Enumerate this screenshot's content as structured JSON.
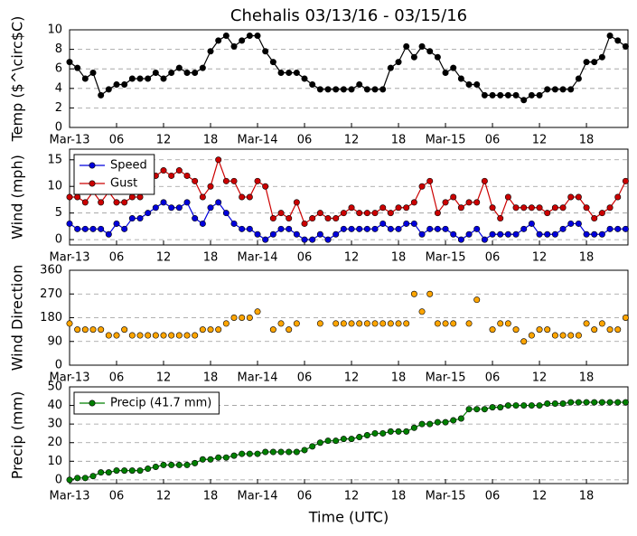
{
  "chart_data": [
    {
      "type": "line",
      "title": "Chehalis 03/13/16 - 03/15/16",
      "ylabel": "Temp ($^\\circ$C)",
      "x": [
        0,
        1,
        2,
        3,
        4,
        5,
        6,
        7,
        8,
        9,
        10,
        11,
        12,
        13,
        14,
        15,
        16,
        17,
        18,
        19,
        20,
        21,
        22,
        23,
        24,
        25,
        26,
        27,
        28,
        29,
        30,
        31,
        32,
        33,
        34,
        35,
        36,
        37,
        38,
        39,
        40,
        41,
        42,
        43,
        44,
        45,
        46,
        47,
        48,
        49,
        50,
        51,
        52,
        53,
        54,
        55,
        56,
        57,
        58,
        59,
        60,
        61,
        62,
        63,
        64,
        65,
        66,
        67,
        68,
        69,
        70,
        71
      ],
      "xlim": [
        0,
        71.3
      ],
      "xticks": [
        {
          "value": 0,
          "label": "Mar-13"
        },
        {
          "value": 6,
          "label": "06"
        },
        {
          "value": 12,
          "label": "12"
        },
        {
          "value": 18,
          "label": "18"
        },
        {
          "value": 24,
          "label": "Mar-14"
        },
        {
          "value": 30,
          "label": "06"
        },
        {
          "value": 36,
          "label": "12"
        },
        {
          "value": 42,
          "label": "18"
        },
        {
          "value": 48,
          "label": "Mar-15"
        },
        {
          "value": 54,
          "label": "06"
        },
        {
          "value": 60,
          "label": "12"
        },
        {
          "value": 66,
          "label": "18"
        }
      ],
      "ylim": [
        0,
        10
      ],
      "yticks": [
        0,
        2,
        4,
        6,
        8,
        10
      ],
      "grid": true,
      "series": [
        {
          "name": null,
          "color": "#000000",
          "values": [
            6.7,
            6.1,
            5.0,
            5.6,
            3.3,
            3.9,
            4.4,
            4.4,
            5.0,
            5.0,
            5.0,
            5.6,
            5.0,
            5.6,
            6.1,
            5.6,
            5.6,
            6.1,
            7.8,
            8.9,
            9.4,
            8.3,
            8.9,
            9.4,
            9.4,
            7.8,
            6.7,
            5.6,
            5.6,
            5.6,
            5.0,
            4.4,
            3.9,
            3.9,
            3.9,
            3.9,
            3.9,
            4.4,
            3.9,
            3.9,
            3.9,
            6.1,
            6.7,
            8.3,
            7.2,
            8.3,
            7.8,
            7.2,
            5.6,
            6.1,
            5.0,
            4.4,
            4.4,
            3.3,
            3.3,
            3.3,
            3.3,
            3.3,
            2.8,
            3.3,
            3.3,
            3.9,
            3.9,
            3.9,
            3.9,
            5.0,
            6.7,
            6.7,
            7.2,
            9.4,
            8.9,
            8.3
          ]
        }
      ]
    },
    {
      "type": "line",
      "ylabel": "Wind (mph)",
      "legend": "upper left",
      "x": [
        0,
        1,
        2,
        3,
        4,
        5,
        6,
        7,
        8,
        9,
        10,
        11,
        12,
        13,
        14,
        15,
        16,
        17,
        18,
        19,
        20,
        21,
        22,
        23,
        24,
        25,
        26,
        27,
        28,
        29,
        30,
        31,
        32,
        33,
        34,
        35,
        36,
        37,
        38,
        39,
        40,
        41,
        42,
        43,
        44,
        45,
        46,
        47,
        48,
        49,
        50,
        51,
        52,
        53,
        54,
        55,
        56,
        57,
        58,
        59,
        60,
        61,
        62,
        63,
        64,
        65,
        66,
        67,
        68,
        69,
        70,
        71
      ],
      "xlim": [
        0,
        71.3
      ],
      "xticks": [
        {
          "value": 0,
          "label": "Mar-13"
        },
        {
          "value": 6,
          "label": "06"
        },
        {
          "value": 12,
          "label": "12"
        },
        {
          "value": 18,
          "label": "18"
        },
        {
          "value": 24,
          "label": "Mar-14"
        },
        {
          "value": 30,
          "label": "06"
        },
        {
          "value": 36,
          "label": "12"
        },
        {
          "value": 42,
          "label": "18"
        },
        {
          "value": 48,
          "label": "Mar-15"
        },
        {
          "value": 54,
          "label": "06"
        },
        {
          "value": 60,
          "label": "12"
        },
        {
          "value": 66,
          "label": "18"
        }
      ],
      "ylim": [
        -1,
        17
      ],
      "yticks": [
        0,
        5,
        10,
        15
      ],
      "grid": true,
      "series": [
        {
          "name": "Speed",
          "color": "#0000dd",
          "values": [
            3,
            2,
            2,
            2,
            2,
            1,
            3,
            2,
            4,
            4,
            5,
            6,
            7,
            6,
            6,
            7,
            4,
            3,
            6,
            7,
            5,
            3,
            2,
            2,
            1,
            0,
            1,
            2,
            2,
            1,
            0,
            0,
            1,
            0,
            1,
            2,
            2,
            2,
            2,
            2,
            3,
            2,
            2,
            3,
            3,
            1,
            2,
            2,
            2,
            1,
            0,
            1,
            2,
            0,
            1,
            1,
            1,
            1,
            2,
            3,
            1,
            1,
            1,
            2,
            3,
            3,
            1,
            1,
            1,
            2,
            2,
            2
          ]
        },
        {
          "name": "Gust",
          "color": "#cc0000",
          "values": [
            8,
            8,
            7,
            9,
            7,
            9,
            7,
            7,
            8,
            8,
            11,
            12,
            13,
            12,
            13,
            12,
            11,
            8,
            10,
            15,
            11,
            11,
            8,
            8,
            11,
            10,
            4,
            5,
            4,
            7,
            3,
            4,
            5,
            4,
            4,
            5,
            6,
            5,
            5,
            5,
            6,
            5,
            6,
            6,
            7,
            10,
            11,
            5,
            7,
            8,
            6,
            7,
            7,
            11,
            6,
            4,
            8,
            6,
            6,
            6,
            6,
            5,
            6,
            6,
            8,
            8,
            6,
            4,
            5,
            6,
            8,
            11
          ]
        }
      ]
    },
    {
      "type": "scatter",
      "ylabel": "Wind Direction",
      "x": [
        0,
        1,
        2,
        3,
        4,
        5,
        6,
        7,
        8,
        9,
        10,
        11,
        12,
        13,
        14,
        15,
        16,
        17,
        18,
        19,
        20,
        21,
        22,
        23,
        24,
        25,
        26,
        27,
        28,
        29,
        30,
        31,
        32,
        33,
        34,
        35,
        36,
        37,
        38,
        39,
        40,
        41,
        42,
        43,
        44,
        45,
        46,
        47,
        48,
        49,
        50,
        51,
        52,
        53,
        54,
        55,
        56,
        57,
        58,
        59,
        60,
        61,
        62,
        63,
        64,
        65,
        66,
        67,
        68,
        69,
        70,
        71
      ],
      "xlim": [
        0,
        71.3
      ],
      "xticks": [
        {
          "value": 0,
          "label": "Mar-13"
        },
        {
          "value": 6,
          "label": "06"
        },
        {
          "value": 12,
          "label": "12"
        },
        {
          "value": 18,
          "label": "18"
        },
        {
          "value": 24,
          "label": "Mar-14"
        },
        {
          "value": 30,
          "label": "06"
        },
        {
          "value": 36,
          "label": "12"
        },
        {
          "value": 42,
          "label": "18"
        },
        {
          "value": 48,
          "label": "Mar-15"
        },
        {
          "value": 54,
          "label": "06"
        },
        {
          "value": 60,
          "label": "12"
        },
        {
          "value": 66,
          "label": "18"
        }
      ],
      "ylim": [
        0,
        360
      ],
      "yticks": [
        0,
        90,
        180,
        270,
        360
      ],
      "grid": true,
      "series": [
        {
          "name": null,
          "color": "#ffa500",
          "values": [
            158,
            135,
            135,
            135,
            135,
            113,
            113,
            135,
            113,
            113,
            113,
            113,
            113,
            113,
            113,
            113,
            113,
            135,
            135,
            135,
            158,
            180,
            180,
            180,
            203,
            null,
            135,
            158,
            135,
            158,
            null,
            null,
            158,
            null,
            158,
            158,
            158,
            158,
            158,
            158,
            158,
            158,
            158,
            158,
            270,
            203,
            270,
            158,
            158,
            158,
            null,
            158,
            248,
            null,
            135,
            158,
            158,
            135,
            90,
            113,
            135,
            135,
            113,
            113,
            113,
            113,
            158,
            135,
            158,
            135,
            135,
            180
          ]
        }
      ]
    },
    {
      "type": "line",
      "ylabel": "Precip (mm)",
      "xlabel": "Time (UTC)",
      "legend": "upper left",
      "x": [
        0,
        1,
        2,
        3,
        4,
        5,
        6,
        7,
        8,
        9,
        10,
        11,
        12,
        13,
        14,
        15,
        16,
        17,
        18,
        19,
        20,
        21,
        22,
        23,
        24,
        25,
        26,
        27,
        28,
        29,
        30,
        31,
        32,
        33,
        34,
        35,
        36,
        37,
        38,
        39,
        40,
        41,
        42,
        43,
        44,
        45,
        46,
        47,
        48,
        49,
        50,
        51,
        52,
        53,
        54,
        55,
        56,
        57,
        58,
        59,
        60,
        61,
        62,
        63,
        64,
        65,
        66,
        67,
        68,
        69,
        70,
        71
      ],
      "xlim": [
        0,
        71.3
      ],
      "xticks": [
        {
          "value": 0,
          "label": "Mar-13"
        },
        {
          "value": 6,
          "label": "06"
        },
        {
          "value": 12,
          "label": "12"
        },
        {
          "value": 18,
          "label": "18"
        },
        {
          "value": 24,
          "label": "Mar-14"
        },
        {
          "value": 30,
          "label": "06"
        },
        {
          "value": 36,
          "label": "12"
        },
        {
          "value": 42,
          "label": "18"
        },
        {
          "value": 48,
          "label": "Mar-15"
        },
        {
          "value": 54,
          "label": "06"
        },
        {
          "value": 60,
          "label": "12"
        },
        {
          "value": 66,
          "label": "18"
        }
      ],
      "ylim": [
        -2,
        50
      ],
      "yticks": [
        0,
        10,
        20,
        30,
        40,
        50
      ],
      "grid": true,
      "series": [
        {
          "name": "Precip (41.7 mm)",
          "color": "#008000",
          "values": [
            0,
            1,
            1,
            2,
            4,
            4,
            5,
            5,
            5,
            5,
            6,
            7,
            8,
            8,
            8,
            8,
            9,
            11,
            11,
            12,
            12,
            13,
            14,
            14,
            14,
            15,
            15,
            15,
            15,
            15,
            16,
            18,
            20,
            21,
            21,
            22,
            22,
            23,
            24,
            25,
            25,
            26,
            26,
            26,
            28,
            30,
            30,
            31,
            31,
            32,
            33,
            38,
            38,
            38,
            39,
            39,
            40,
            40,
            40,
            40,
            40,
            41,
            41,
            41,
            41.7,
            41.7,
            41.7,
            41.7,
            41.7,
            41.7,
            41.7,
            41.7
          ]
        }
      ]
    }
  ]
}
